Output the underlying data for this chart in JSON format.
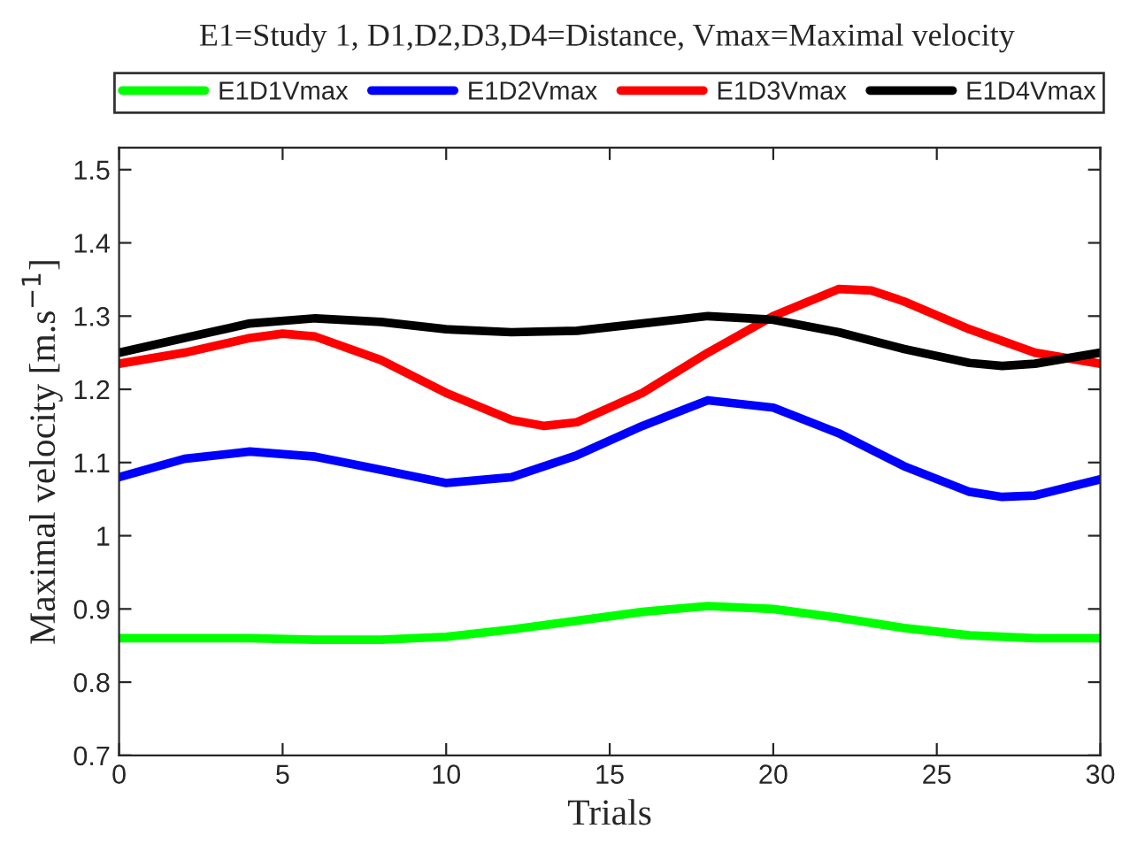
{
  "chart_data": {
    "type": "line",
    "title": "E1=Study 1, D1,D2,D3,D4=Distance, Vmax=Maximal velocity",
    "xlabel": "Trials",
    "ylabel": "Maximal velocity [m.s$^{−1}$]",
    "series": [
      {
        "name": "E1D1Vmax",
        "color": "#00ff00",
        "x": [
          0,
          2,
          4,
          6,
          8,
          10,
          12,
          14,
          16,
          18,
          20,
          22,
          24,
          26,
          28,
          30
        ],
        "values": [
          0.86,
          0.86,
          0.86,
          0.858,
          0.858,
          0.862,
          0.872,
          0.884,
          0.896,
          0.904,
          0.9,
          0.888,
          0.874,
          0.864,
          0.86,
          0.86
        ]
      },
      {
        "name": "E1D2Vmax",
        "color": "#0000ff",
        "x": [
          0,
          2,
          4,
          6,
          8,
          10,
          12,
          14,
          16,
          18,
          20,
          22,
          24,
          26,
          27,
          28,
          30
        ],
        "values": [
          1.08,
          1.105,
          1.115,
          1.108,
          1.09,
          1.072,
          1.08,
          1.11,
          1.15,
          1.185,
          1.175,
          1.14,
          1.095,
          1.06,
          1.053,
          1.055,
          1.077
        ]
      },
      {
        "name": "E1D3Vmax",
        "color": "#ff0000",
        "x": [
          0,
          2,
          4,
          5,
          6,
          8,
          10,
          12,
          13,
          14,
          16,
          18,
          20,
          22,
          23,
          24,
          26,
          28,
          30
        ],
        "values": [
          1.235,
          1.25,
          1.27,
          1.276,
          1.272,
          1.24,
          1.195,
          1.158,
          1.15,
          1.155,
          1.195,
          1.25,
          1.3,
          1.337,
          1.335,
          1.32,
          1.282,
          1.25,
          1.235
        ]
      },
      {
        "name": "E1D4Vmax",
        "color": "#000000",
        "x": [
          0,
          2,
          4,
          6,
          8,
          10,
          12,
          14,
          16,
          18,
          20,
          22,
          24,
          26,
          27,
          28,
          30
        ],
        "values": [
          1.25,
          1.27,
          1.29,
          1.297,
          1.292,
          1.282,
          1.278,
          1.28,
          1.29,
          1.3,
          1.295,
          1.278,
          1.255,
          1.236,
          1.232,
          1.235,
          1.25
        ]
      }
    ],
    "xlim": [
      0,
      30
    ],
    "xticks": [
      0,
      5,
      10,
      15,
      20,
      25,
      30
    ],
    "ylim": [
      0.7,
      1.53
    ],
    "yticks": [
      {
        "value": 0.7,
        "label": "0.7"
      },
      {
        "value": 0.8,
        "label": "0.8"
      },
      {
        "value": 0.9,
        "label": "0.9"
      },
      {
        "value": 1,
        "label": "1"
      },
      {
        "value": 1.1,
        "label": "1.1"
      },
      {
        "value": 1.2,
        "label": "1.2"
      },
      {
        "value": 1.3,
        "label": "1.3"
      },
      {
        "value": 1.4,
        "label": "1.4"
      },
      {
        "value": 1.5,
        "label": "1.5"
      }
    ],
    "legend": "top",
    "grid": false,
    "marker": "none",
    "line_style": "solid"
  }
}
